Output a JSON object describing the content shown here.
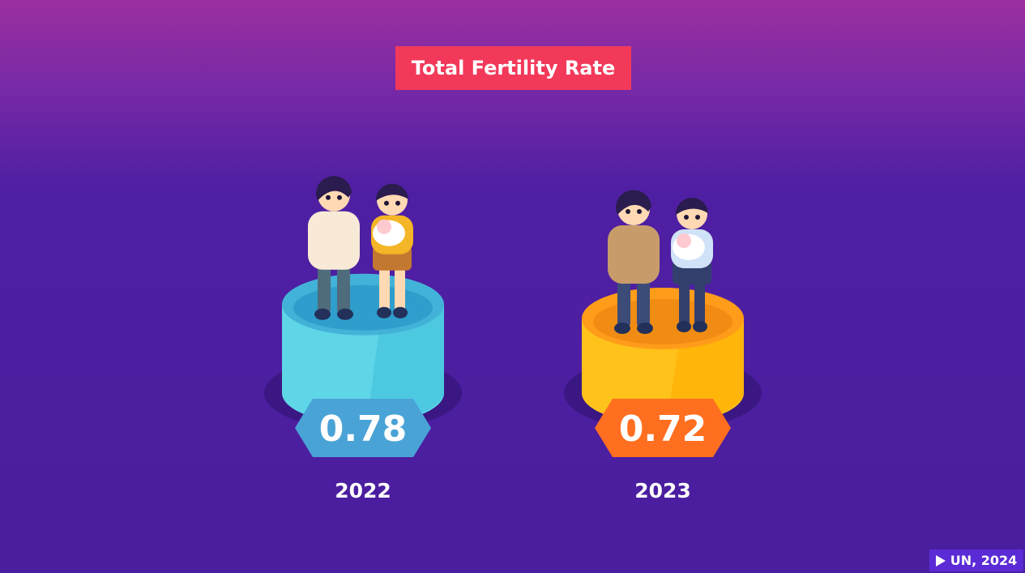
{
  "title": "Total Fertility Rate",
  "source": "UN, 2024",
  "icons": [
    "play-icon",
    "family-icon"
  ],
  "colors": {
    "cyan": "#5fd6e8",
    "yellow": "#ffc21a",
    "badge_blue": "#4aa3d6",
    "badge_orange": "#ff6f1f",
    "title_bg": "#f2395a"
  },
  "chart_data": {
    "type": "bar",
    "title": "Total Fertility Rate",
    "categories": [
      "2022",
      "2023"
    ],
    "values": [
      0.78,
      0.72
    ],
    "value_labels": [
      "0.78",
      "0.72"
    ],
    "xlabel": "",
    "ylabel": ""
  }
}
